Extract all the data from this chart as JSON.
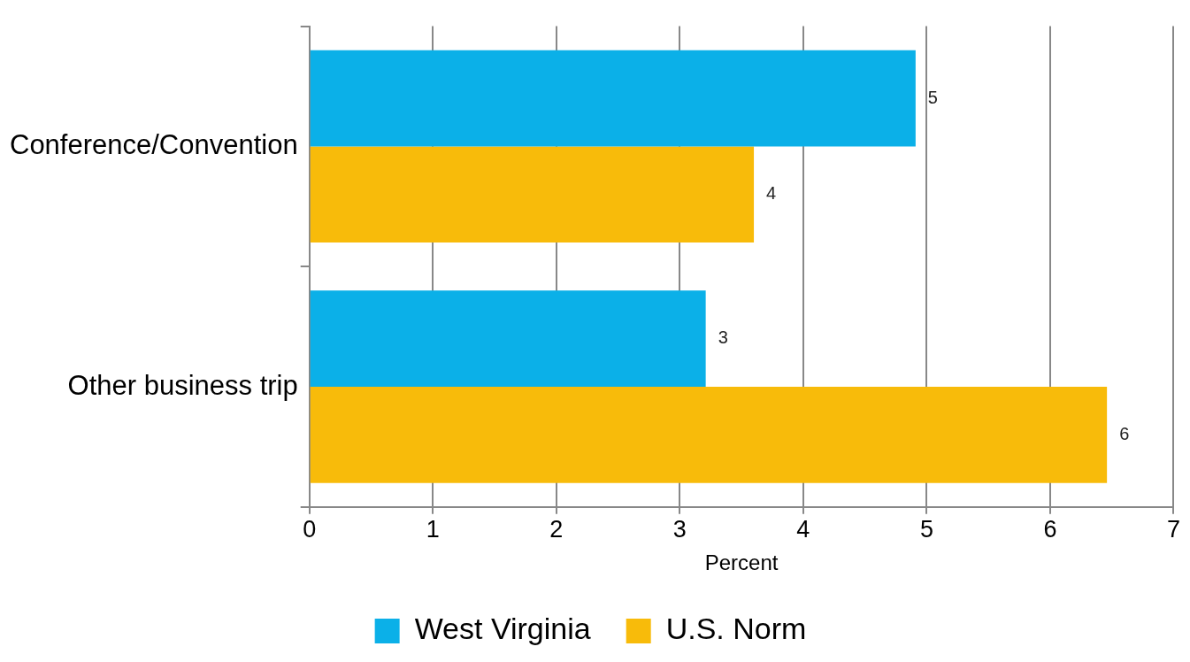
{
  "chart_data": {
    "type": "bar",
    "orientation": "horizontal",
    "categories": [
      "Conference/Convention",
      "Other business trip"
    ],
    "series": [
      {
        "name": "West Virginia",
        "color": "#0bb0e8",
        "values": [
          4.91,
          3.21
        ],
        "value_labels": [
          "5",
          "3"
        ]
      },
      {
        "name": "U.S. Norm",
        "color": "#f8bb0a",
        "values": [
          3.6,
          6.46
        ],
        "value_labels": [
          "4",
          "6"
        ]
      }
    ],
    "xlabel": "Percent",
    "xlim": [
      0,
      7
    ],
    "xticks": [
      0,
      1,
      2,
      3,
      4,
      5,
      6,
      7
    ],
    "grid": "x",
    "legend": "bottom"
  }
}
